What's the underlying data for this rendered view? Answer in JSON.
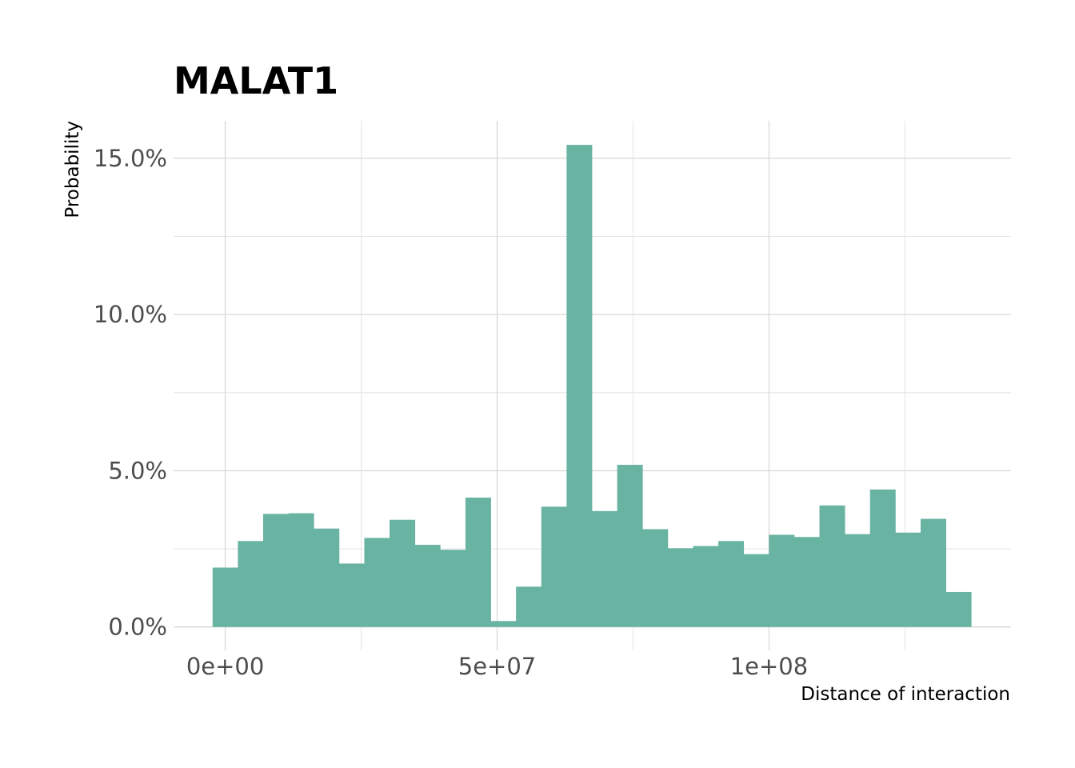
{
  "chart_data": {
    "type": "bar",
    "title": "MALAT1",
    "xlabel": "Distance of interaction",
    "ylabel": "Probability",
    "bar_color": "#69b3a2",
    "grid": true,
    "legend": "none",
    "xlim": [
      -9500000,
      144500000
    ],
    "ylim": [
      -0.0075,
      0.162
    ],
    "x_ticks": [
      0,
      50000000,
      100000000
    ],
    "x_tick_labels": [
      "0e+00",
      "5e+07",
      "1e+08"
    ],
    "x_minor_ticks": [
      25000000,
      75000000,
      125000000
    ],
    "y_ticks": [
      0,
      0.05,
      0.1,
      0.15
    ],
    "y_tick_labels": [
      "0.0%",
      "5.0%",
      "10.0%",
      "15.0%"
    ],
    "y_minor_ticks": [
      0.025,
      0.075,
      0.125
    ],
    "bin_width": 4650000,
    "bin_centers": [
      0,
      4650000,
      9300000,
      13950000,
      18600000,
      23250000,
      27900000,
      32550000,
      37200000,
      41850000,
      46500000,
      51150000,
      55800000,
      60450000,
      65100000,
      69750000,
      74400000,
      79050000,
      83700000,
      88350000,
      93000000,
      97650000,
      102300000,
      106950000,
      111600000,
      116250000,
      120900000,
      125550000,
      130200000,
      134850000
    ],
    "values": [
      0.019,
      0.0275,
      0.0362,
      0.0364,
      0.0315,
      0.0203,
      0.0285,
      0.0343,
      0.0263,
      0.0247,
      0.0414,
      0.0019,
      0.0129,
      0.0385,
      0.1543,
      0.0371,
      0.0519,
      0.0313,
      0.0252,
      0.0259,
      0.0275,
      0.0233,
      0.0295,
      0.0288,
      0.0389,
      0.0297,
      0.044,
      0.0302,
      0.0346,
      0.0112
    ]
  }
}
